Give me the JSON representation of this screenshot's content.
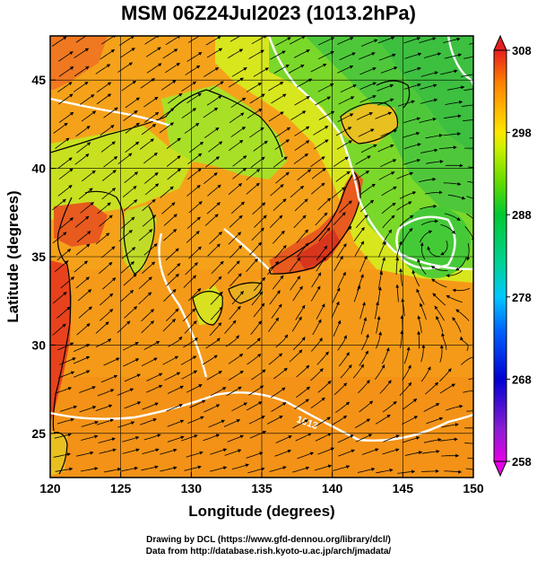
{
  "title": "MSM 06Z24Jul2023 (1013.2hPa)",
  "map": {
    "lon_range": [
      120,
      150
    ],
    "lat_range": [
      22.5,
      47.5
    ],
    "x_label": "Longitude (degrees)",
    "y_label": "Latitude  (degrees)",
    "x_ticks": [
      120,
      125,
      130,
      135,
      140,
      145,
      150
    ],
    "y_ticks": [
      25,
      30,
      35,
      40,
      45
    ],
    "x_tick_labels": [
      "120",
      "125",
      "130",
      "135",
      "140",
      "145",
      "150"
    ],
    "y_tick_labels": [
      "25",
      "30",
      "35",
      "40",
      "45"
    ],
    "grid": true,
    "isobar_labels": [
      "1013"
    ]
  },
  "colorbar": {
    "min": 258,
    "max": 308,
    "tick_values": [
      258,
      268,
      278,
      288,
      298,
      308
    ],
    "tick_labels": [
      "258",
      "268",
      "278",
      "288",
      "298",
      "308"
    ],
    "colors": [
      "#e600e6",
      "#5a1ed2",
      "#0000d2",
      "#0064ff",
      "#00c8ff",
      "#00d296",
      "#00c832",
      "#64dc00",
      "#c8f000",
      "#ffe600",
      "#ffb400",
      "#ff8200",
      "#ff5000",
      "#e61e1e"
    ]
  },
  "footer": {
    "line1": "Drawing by DCL (https://www.gfd-dennou.org/library/dcl/)",
    "line2": "Data from http://database.rish.kyoto-u.ac.jp/arch/jmadata/"
  }
}
